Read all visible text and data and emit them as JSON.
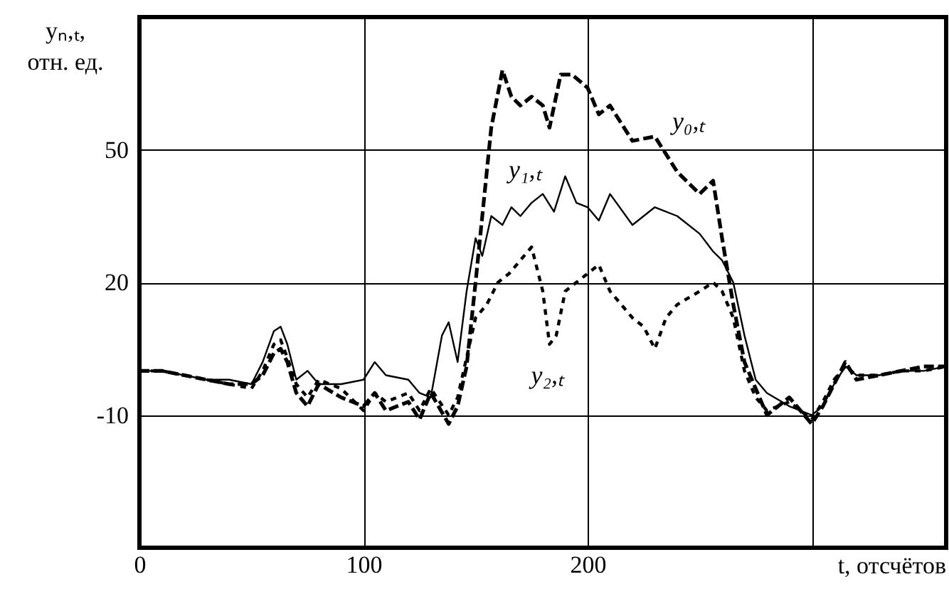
{
  "chart_data": {
    "type": "line",
    "xlabel": "t, отсчётов",
    "ylabel": "yₙ,ₜ, отн. ед.",
    "xlim": [
      0,
      360
    ],
    "xticks": [
      0,
      100,
      200,
      {
        "value": 300,
        "label": null
      }
    ],
    "ylim": [
      -40,
      80
    ],
    "yticks": [
      -10,
      20,
      50
    ],
    "grid": true,
    "series": [
      {
        "name": "y₀,ₜ",
        "color": "#000000",
        "line_style": "dashed",
        "x": [
          0,
          10,
          20,
          30,
          40,
          50,
          55,
          60,
          63,
          66,
          70,
          75,
          80,
          90,
          100,
          105,
          110,
          120,
          125,
          130,
          138,
          142,
          146,
          150,
          153,
          157,
          162,
          166,
          170,
          175,
          180,
          183,
          188,
          193,
          200,
          205,
          210,
          220,
          230,
          240,
          250,
          256,
          260,
          265,
          270,
          275,
          280,
          290,
          300,
          305,
          310,
          315,
          320,
          330,
          340,
          350,
          360
        ],
        "values": [
          0,
          0,
          -1,
          -2,
          -3,
          -3,
          -1,
          4,
          5,
          2,
          -5,
          -8,
          -3,
          -6,
          -8,
          -5,
          -9,
          -7,
          -11,
          -5,
          -12,
          -8,
          1,
          20,
          35,
          55,
          68,
          62,
          60,
          62,
          60,
          55,
          67,
          67,
          64,
          58,
          60,
          52,
          53,
          45,
          40,
          43,
          30,
          15,
          2,
          -4,
          -10,
          -6,
          -12,
          -8,
          -3,
          2,
          -2,
          -1,
          0,
          1,
          1
        ]
      },
      {
        "name": "y₁,ₜ",
        "color": "#000000",
        "line_style": "solid",
        "x": [
          0,
          10,
          20,
          30,
          40,
          50,
          55,
          60,
          63,
          66,
          70,
          75,
          80,
          90,
          100,
          105,
          110,
          120,
          125,
          130,
          135,
          138,
          142,
          146,
          150,
          153,
          157,
          162,
          166,
          170,
          175,
          180,
          185,
          190,
          195,
          200,
          205,
          210,
          220,
          230,
          240,
          250,
          256,
          260,
          265,
          270,
          275,
          280,
          290,
          300,
          305,
          310,
          315,
          320,
          330,
          340,
          350,
          360
        ],
        "values": [
          0,
          0,
          -1,
          -2,
          -2,
          -3,
          2,
          9,
          10,
          6,
          -2,
          0,
          -3,
          -3,
          -2,
          2,
          -1,
          -2,
          -5,
          -6,
          8,
          11,
          2,
          18,
          30,
          26,
          35,
          33,
          37,
          35,
          38,
          40,
          36,
          44,
          38,
          37,
          34,
          40,
          33,
          37,
          35,
          31,
          27,
          25,
          20,
          8,
          -2,
          -5,
          -8,
          -10,
          -8,
          -3,
          1,
          -1,
          -1,
          0,
          0,
          1
        ]
      },
      {
        "name": "y₂,ₜ",
        "color": "#000000",
        "line_style": "dotted",
        "x": [
          0,
          10,
          20,
          30,
          40,
          50,
          55,
          60,
          63,
          66,
          70,
          75,
          80,
          90,
          100,
          105,
          110,
          120,
          125,
          130,
          138,
          142,
          146,
          150,
          155,
          160,
          165,
          170,
          175,
          180,
          183,
          186,
          190,
          195,
          200,
          205,
          210,
          215,
          220,
          225,
          230,
          235,
          240,
          250,
          256,
          260,
          265,
          270,
          275,
          280,
          290,
          300,
          305,
          310,
          315,
          320,
          330,
          340,
          350,
          360
        ],
        "values": [
          0,
          0,
          -1,
          -2,
          -3,
          -4,
          0,
          6,
          7,
          3,
          -3,
          -6,
          -2,
          -4,
          -9,
          -5,
          -7,
          -5,
          -9,
          -4,
          -10,
          -6,
          3,
          12,
          15,
          20,
          22,
          25,
          28,
          18,
          6,
          8,
          18,
          20,
          22,
          24,
          18,
          15,
          12,
          10,
          5,
          12,
          15,
          18,
          20,
          18,
          12,
          0,
          -6,
          -9,
          -7,
          -11,
          -7,
          -2,
          1,
          -1,
          -1,
          0,
          0,
          1
        ]
      }
    ]
  }
}
